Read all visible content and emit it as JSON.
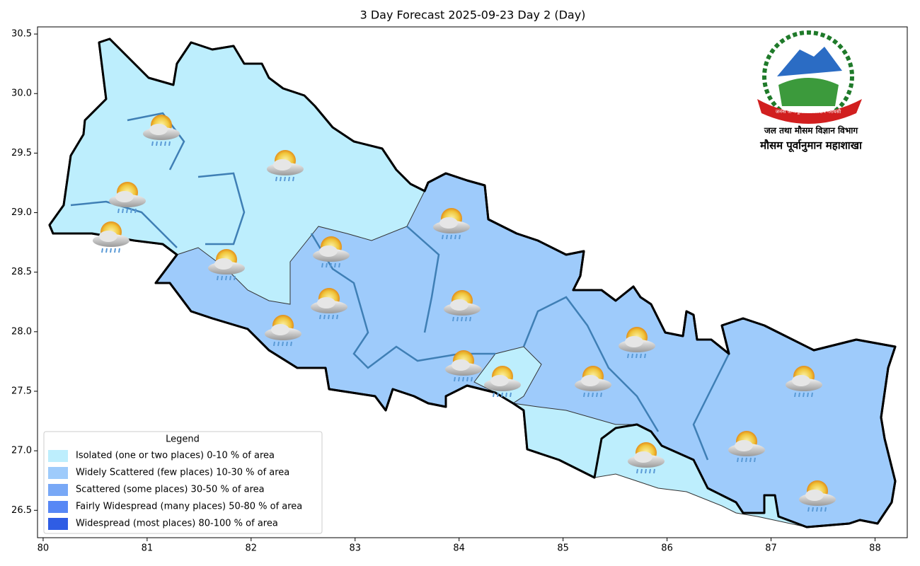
{
  "map": {
    "title": "3 Day Forecast 2025-09-23 Day 2 (Day)",
    "xlim": [
      79.946,
      88.31
    ],
    "ylim": [
      26.27,
      30.56
    ],
    "xticks": [
      80,
      81,
      82,
      83,
      84,
      85,
      86,
      87,
      88
    ],
    "yticks": [
      26.5,
      {
        "value": 27,
        "label": "27.0"
      },
      27.5,
      {
        "value": 28,
        "label": "28.0"
      },
      28.5,
      {
        "value": 29,
        "label": "29.0"
      },
      29.5,
      {
        "value": 30,
        "label": "30.0"
      },
      30.5
    ],
    "legend": {
      "title": "Legend",
      "items": [
        {
          "label": "Isolated (one or two places)  0-10 % of area",
          "color": "#bdeefd"
        },
        {
          "label": "Widely Scattered (few places) 10-30 % of area",
          "color": "#9ecbfb"
        },
        {
          "label": "Scattered (some places) 30-50  % of area",
          "color": "#78a8f6"
        },
        {
          "label": "Fairly Widespread (many places) 50-80 % of area",
          "color": "#5787f5"
        },
        {
          "label": "Widespread (most places) 80-100 % of area",
          "color": "#2f5de4"
        }
      ]
    },
    "logo": {
      "motto": "जननी जन्मभूमिश्च स्वर्गादपि गरीयसी",
      "department": "जल तथा मौसम विज्ञान विभाग",
      "division": "मौसम पूर्वानुमान महाशाखा"
    }
  }
}
